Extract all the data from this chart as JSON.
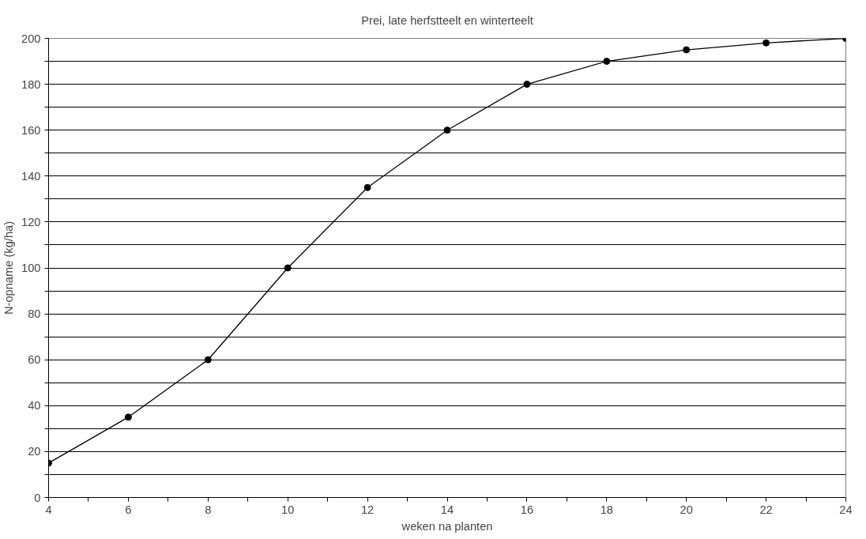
{
  "chart_data": {
    "type": "line",
    "title": "Prei, late herfstteelt en winterteelt",
    "xlabel": "weken na planten",
    "ylabel": "N-opname (kg/ha)",
    "x": [
      4,
      6,
      8,
      10,
      12,
      14,
      16,
      18,
      20,
      22,
      24
    ],
    "series": [
      {
        "color": "#000000",
        "values": [
          15,
          35,
          60,
          100,
          135,
          160,
          180,
          190,
          195,
          198,
          200
        ]
      }
    ],
    "xlim": [
      4,
      24
    ],
    "ylim": [
      0,
      200
    ],
    "xticks": [
      4,
      {
        "value": 5,
        "label": null
      },
      6,
      {
        "value": 7,
        "label": null
      },
      8,
      {
        "value": 9,
        "label": null
      },
      10,
      {
        "value": 11,
        "label": null
      },
      12,
      {
        "value": 13,
        "label": null
      },
      14,
      {
        "value": 15,
        "label": null
      },
      16,
      {
        "value": 17,
        "label": null
      },
      18,
      {
        "value": 19,
        "label": null
      },
      20,
      {
        "value": 21,
        "label": null
      },
      22,
      {
        "value": 23,
        "label": null
      },
      24
    ],
    "yticks": [
      0,
      {
        "value": 10,
        "label": null
      },
      20,
      {
        "value": 30,
        "label": null
      },
      40,
      {
        "value": 50,
        "label": null
      },
      60,
      {
        "value": 70,
        "label": null
      },
      80,
      {
        "value": 90,
        "label": null
      },
      100,
      {
        "value": 110,
        "label": null
      },
      120,
      {
        "value": 130,
        "label": null
      },
      140,
      {
        "value": 150,
        "label": null
      },
      160,
      {
        "value": 170,
        "label": null
      },
      180,
      {
        "value": 190,
        "label": null
      },
      200
    ],
    "grid": "y",
    "marker": "circle",
    "line_style": "solid"
  }
}
